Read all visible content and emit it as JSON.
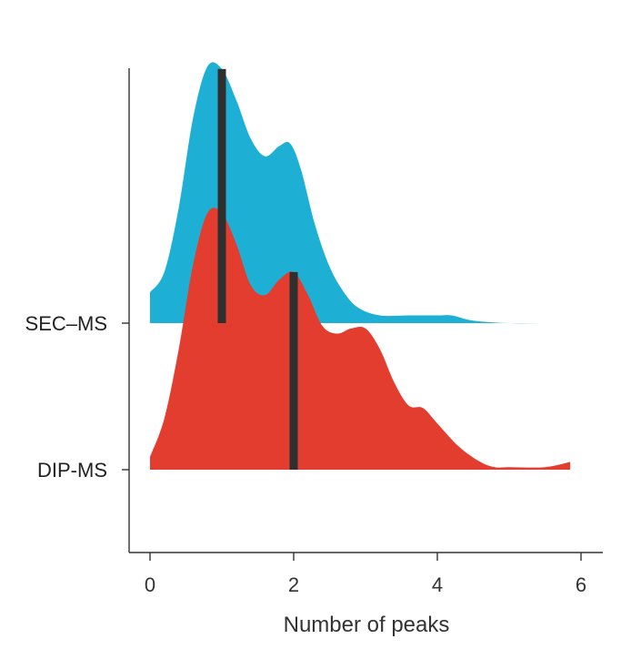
{
  "chart_data": {
    "type": "area",
    "subtype": "ridgeline-density",
    "title": "",
    "xlabel": "Number of peaks",
    "ylabel": "",
    "xlim": [
      -0.3,
      6.3
    ],
    "x_ticks": [
      0,
      2,
      4,
      6
    ],
    "grid": false,
    "legend": "none",
    "series": [
      {
        "name": "SEC–MS",
        "color": "#1eb0d4",
        "median": 1,
        "x": [
          0.0,
          0.2,
          0.4,
          0.6,
          0.8,
          1.0,
          1.2,
          1.4,
          1.6,
          1.8,
          1.95,
          2.1,
          2.3,
          2.5,
          2.7,
          2.9,
          3.2,
          3.6,
          4.0,
          4.2,
          4.5,
          5.0,
          5.5,
          5.9
        ],
        "density": [
          0.12,
          0.2,
          0.45,
          0.8,
          1.0,
          0.99,
          0.87,
          0.72,
          0.65,
          0.69,
          0.7,
          0.6,
          0.38,
          0.22,
          0.12,
          0.06,
          0.03,
          0.03,
          0.03,
          0.03,
          0.01,
          0.0,
          0.0,
          0.0
        ]
      },
      {
        "name": "DIP-MS",
        "color": "#e23d2f",
        "median": 2,
        "x": [
          0.0,
          0.2,
          0.4,
          0.6,
          0.8,
          1.0,
          1.2,
          1.4,
          1.6,
          1.8,
          2.0,
          2.2,
          2.4,
          2.6,
          2.8,
          3.0,
          3.2,
          3.4,
          3.6,
          3.8,
          4.0,
          4.3,
          4.6,
          4.8,
          5.0,
          5.5,
          5.85
        ],
        "density": [
          0.05,
          0.2,
          0.47,
          0.8,
          1.0,
          1.0,
          0.88,
          0.72,
          0.68,
          0.74,
          0.77,
          0.68,
          0.56,
          0.53,
          0.55,
          0.55,
          0.47,
          0.34,
          0.25,
          0.24,
          0.18,
          0.09,
          0.03,
          0.01,
          0.01,
          0.01,
          0.03
        ]
      }
    ]
  }
}
